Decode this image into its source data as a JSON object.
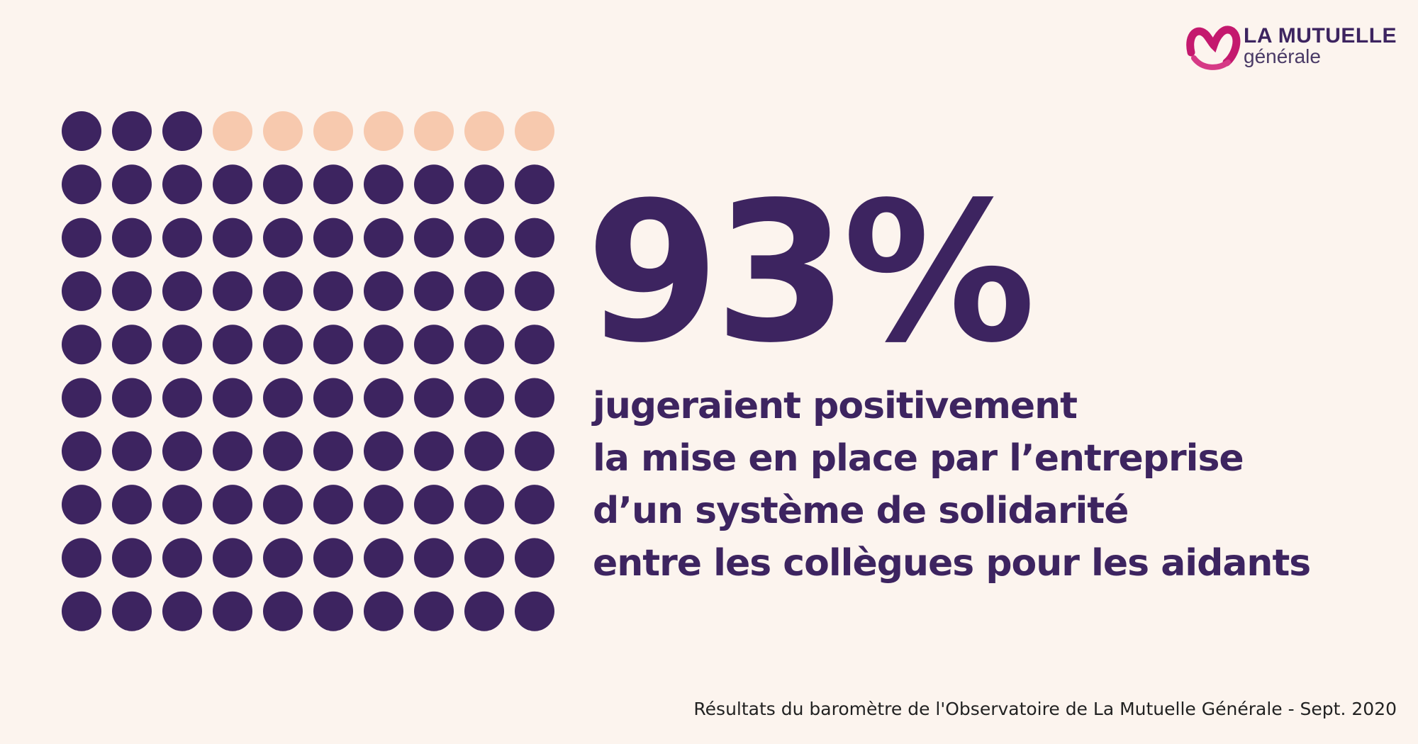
{
  "logo": {
    "line1": "LA MUTUELLE",
    "line2": "générale",
    "brand_color": "#c4196e"
  },
  "headline": {
    "value": "93%"
  },
  "description": {
    "lines": [
      "jugeraient positivement",
      "la mise en place par l’entreprise",
      "d’un système de solidarité",
      "entre les collègues pour les aidants"
    ]
  },
  "footer": {
    "source": "Résultats du baromètre de l'Observatoire de La Mutuelle Générale - Sept. 2020"
  },
  "chart_data": {
    "type": "waffle",
    "rows": 10,
    "columns": 10,
    "highlighted_count": 93,
    "total": 100,
    "colors": {
      "highlighted": "#3d2460",
      "remainder": "#f7c9ae",
      "background": "#fcf4ee"
    }
  }
}
